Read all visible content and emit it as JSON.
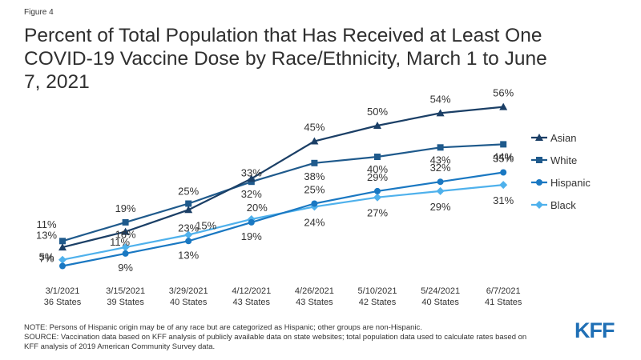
{
  "figure_label": "Figure 4",
  "title_lines": [
    "Percent of Total Population that Has Received at Least One",
    "COVID-19 Vaccine Dose by Race/Ethnicity, March 1 to June",
    "7, 2021"
  ],
  "notes": {
    "note": "NOTE: Persons of Hispanic origin may be of any race but are categorized as Hispanic; other groups are non-Hispanic.",
    "source_line1": "SOURCE: Vaccination data based on KFF analysis of publicly available data on state websites; total population data used to calculate rates based on",
    "source_line2": "KFF analysis of 2019 American Community Survey data."
  },
  "logo_text": "KFF",
  "colors": {
    "asian": "#1b3f66",
    "white": "#1f5a8c",
    "hispanic": "#1a78c2",
    "black": "#4fb1ec"
  },
  "chart_data": {
    "type": "line",
    "categories": [
      "3/1/2021",
      "3/15/2021",
      "3/29/2021",
      "4/12/2021",
      "4/26/2021",
      "5/10/2021",
      "5/24/2021",
      "6/7/2021"
    ],
    "category_sublabels": [
      "36 States",
      "39 States",
      "40 States",
      "43 States",
      "43 States",
      "42 States",
      "40 States",
      "41 States"
    ],
    "ylim": [
      0,
      60
    ],
    "grid": false,
    "legend_position": "right",
    "series": [
      {
        "name": "Asian",
        "marker": "triangle",
        "values": [
          11,
          16,
          23,
          33,
          45,
          50,
          54,
          56
        ],
        "labels": [
          "11%",
          "16%",
          "23%",
          "33%",
          "45%",
          "50%",
          "54%",
          "56%"
        ]
      },
      {
        "name": "White",
        "marker": "square",
        "values": [
          13,
          19,
          25,
          32,
          38,
          40,
          43,
          44
        ],
        "labels": [
          "13%",
          "19%",
          "25%",
          "32%",
          "38%",
          "40%",
          "43%",
          "44%"
        ]
      },
      {
        "name": "Hispanic",
        "marker": "circle",
        "values": [
          5,
          9,
          13,
          19,
          25,
          29,
          32,
          35
        ],
        "labels": [
          "5%",
          "9%",
          "13%",
          "19%",
          "25%",
          "29%",
          "32%",
          "35%"
        ]
      },
      {
        "name": "Black",
        "marker": "diamond",
        "values": [
          7,
          11,
          15,
          20,
          24,
          27,
          29,
          31
        ],
        "labels": [
          "7%",
          "11%",
          "15%",
          "20%",
          "24%",
          "27%",
          "29%",
          "31%"
        ]
      }
    ]
  }
}
